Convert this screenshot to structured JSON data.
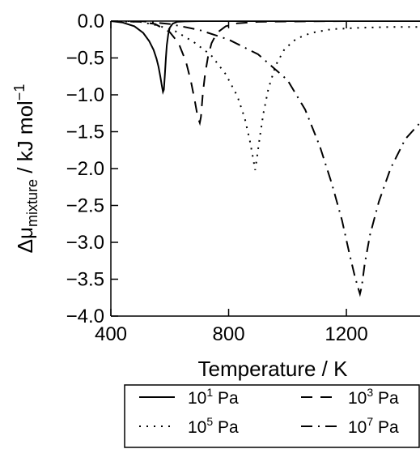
{
  "chart_data": {
    "type": "line",
    "xlabel": "Temperature / K",
    "ylabel": {
      "prefix": "Δμ",
      "subscript": "mixture",
      "unit": " / kJ mol",
      "unit_superscript": "−1"
    },
    "xlim": [
      400,
      1450
    ],
    "ylim": [
      -4.0,
      0.0
    ],
    "x_ticks": [
      400,
      800,
      1200
    ],
    "x_tick_labels": [
      "400",
      "800",
      "1200"
    ],
    "y_ticks": [
      0.0,
      -0.5,
      -1.0,
      -1.5,
      -2.0,
      -2.5,
      -3.0,
      -3.5,
      -4.0
    ],
    "y_tick_labels": [
      "0.0",
      "−0.5",
      "−1.0",
      "−1.5",
      "−2.0",
      "−2.5",
      "−3.0",
      "−3.5",
      "−4.0"
    ],
    "grid": false,
    "legend_position": "bottom",
    "series": [
      {
        "name_base": "10",
        "name_exp": "1",
        "name_unit": "Pa",
        "line_style": "solid",
        "x": [
          400,
          440,
          480,
          510,
          530,
          545,
          555,
          562,
          568,
          573,
          577,
          580,
          583,
          587,
          590,
          595,
          600,
          610,
          625,
          650,
          700,
          800,
          1000,
          1450
        ],
        "y": [
          0.0,
          -0.02,
          -0.07,
          -0.16,
          -0.27,
          -0.39,
          -0.51,
          -0.62,
          -0.75,
          -0.87,
          -0.96,
          -0.93,
          -0.75,
          -0.5,
          -0.33,
          -0.18,
          -0.09,
          -0.035,
          -0.01,
          -0.004,
          0.0,
          0.0,
          0.0,
          0.0
        ]
      },
      {
        "name_base": "10",
        "name_exp": "3",
        "name_unit": "Pa",
        "line_style": "dashed",
        "x": [
          400,
          500,
          550,
          600,
          630,
          655,
          672,
          685,
          695,
          702,
          706,
          712,
          720,
          730,
          742,
          760,
          790,
          830,
          900,
          1000,
          1200,
          1450
        ],
        "y": [
          0.0,
          -0.01,
          -0.04,
          -0.15,
          -0.3,
          -0.55,
          -0.82,
          -1.08,
          -1.3,
          -1.38,
          -1.3,
          -1.0,
          -0.72,
          -0.48,
          -0.3,
          -0.16,
          -0.07,
          -0.03,
          -0.01,
          -0.005,
          0.0,
          0.0
        ]
      },
      {
        "name_base": "10",
        "name_exp": "5",
        "name_unit": "Pa",
        "line_style": "dotted",
        "x": [
          400,
          500,
          560,
          620,
          680,
          740,
          790,
          830,
          855,
          872,
          884,
          890,
          896,
          905,
          918,
          935,
          960,
          990,
          1030,
          1080,
          1150,
          1250,
          1350,
          1450
        ],
        "y": [
          0.0,
          -0.01,
          -0.06,
          -0.14,
          -0.28,
          -0.46,
          -0.72,
          -1.02,
          -1.32,
          -1.62,
          -1.88,
          -2.02,
          -1.86,
          -1.6,
          -1.25,
          -0.92,
          -0.6,
          -0.38,
          -0.24,
          -0.16,
          -0.11,
          -0.09,
          -0.08,
          -0.08
        ]
      },
      {
        "name_base": "10",
        "name_exp": "7",
        "name_unit": "Pa",
        "line_style": "dashdot",
        "x": [
          400,
          500,
          600,
          700,
          800,
          900,
          1000,
          1060,
          1110,
          1150,
          1185,
          1210,
          1228,
          1240,
          1246,
          1252,
          1262,
          1280,
          1310,
          1350,
          1400,
          1450
        ],
        "y": [
          0.0,
          0.0,
          -0.04,
          -0.12,
          -0.25,
          -0.45,
          -0.8,
          -1.2,
          -1.7,
          -2.2,
          -2.7,
          -3.15,
          -3.45,
          -3.62,
          -3.7,
          -3.6,
          -3.3,
          -2.9,
          -2.45,
          -2.0,
          -1.6,
          -1.38
        ]
      }
    ]
  }
}
